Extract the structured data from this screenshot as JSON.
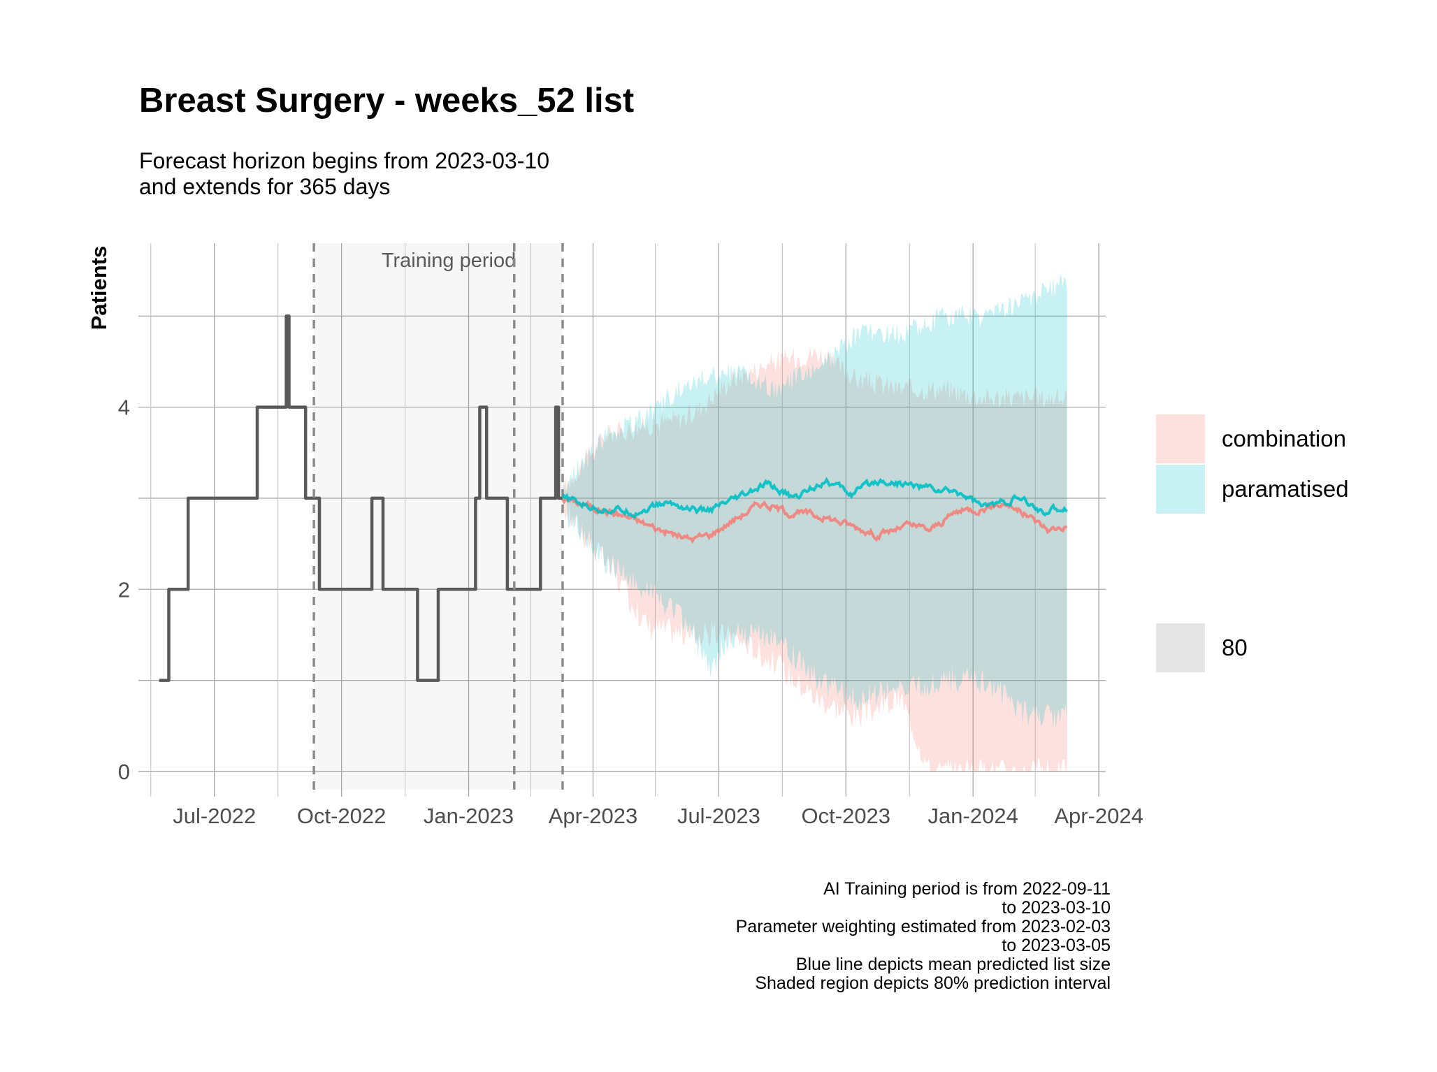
{
  "chart_data": {
    "type": "line",
    "title": "Breast Surgery - weeks_52 list",
    "subtitle": [
      "Forecast horizon begins from 2023-03-10",
      "and extends for 365 days"
    ],
    "xlabel": "",
    "ylabel": "Patients",
    "x_ticks": [
      "Jul-2022",
      "Oct-2022",
      "Jan-2023",
      "Apr-2023",
      "Jul-2023",
      "Oct-2023",
      "Jan-2024",
      "Apr-2024"
    ],
    "y_ticks": [
      0,
      2,
      4
    ],
    "ylim": [
      -0.2,
      5.8
    ],
    "xlim": [
      "2022-05-07",
      "2024-04-06"
    ],
    "grid": true,
    "legend_position": "right",
    "training_period": {
      "start": "2022-09-11",
      "end": "2023-03-10",
      "label": "Training period"
    },
    "reference_lines": [
      "2022-09-11",
      "2023-02-03",
      "2023-03-10"
    ],
    "observed": {
      "color": "#595959",
      "points": [
        [
          "2022-05-22",
          1
        ],
        [
          "2022-05-29",
          2
        ],
        [
          "2022-06-12",
          3
        ],
        [
          "2022-08-01",
          4
        ],
        [
          "2022-08-22",
          5
        ],
        [
          "2022-08-24",
          4
        ],
        [
          "2022-08-27",
          4
        ],
        [
          "2022-09-05",
          3
        ],
        [
          "2022-09-15",
          2
        ],
        [
          "2022-10-23",
          3
        ],
        [
          "2022-10-31",
          2
        ],
        [
          "2022-11-25",
          1
        ],
        [
          "2022-12-10",
          2
        ],
        [
          "2023-01-06",
          3
        ],
        [
          "2023-01-09",
          4
        ],
        [
          "2023-01-14",
          3
        ],
        [
          "2023-01-29",
          2
        ],
        [
          "2023-02-22",
          3
        ],
        [
          "2023-03-05",
          4
        ],
        [
          "2023-03-07",
          3
        ],
        [
          "2023-03-10",
          3
        ]
      ]
    },
    "series": [
      {
        "name": "combination",
        "color": "#f8766d",
        "fill": "#f8766d",
        "points": [
          [
            "2023-03-10",
            3.0
          ],
          [
            "2023-04-01",
            2.9
          ],
          [
            "2023-04-25",
            2.8
          ],
          [
            "2023-05-20",
            2.65
          ],
          [
            "2023-06-10",
            2.55
          ],
          [
            "2023-06-25",
            2.6
          ],
          [
            "2023-07-10",
            2.75
          ],
          [
            "2023-08-01",
            2.95
          ],
          [
            "2023-08-20",
            2.85
          ],
          [
            "2023-09-15",
            2.8
          ],
          [
            "2023-10-05",
            2.7
          ],
          [
            "2023-10-25",
            2.6
          ],
          [
            "2023-11-15",
            2.7
          ],
          [
            "2023-12-01",
            2.65
          ],
          [
            "2023-12-20",
            2.85
          ],
          [
            "2024-01-10",
            2.9
          ],
          [
            "2024-01-25",
            2.95
          ],
          [
            "2024-02-10",
            2.8
          ],
          [
            "2024-02-25",
            2.65
          ],
          [
            "2024-03-09",
            2.7
          ]
        ],
        "lower": [
          [
            "2023-03-10",
            2.9
          ],
          [
            "2023-04-10",
            2.3
          ],
          [
            "2023-05-10",
            1.6
          ],
          [
            "2023-06-10",
            1.5
          ],
          [
            "2023-07-10",
            1.5
          ],
          [
            "2023-08-10",
            1.2
          ],
          [
            "2023-09-10",
            0.8
          ],
          [
            "2023-10-10",
            0.6
          ],
          [
            "2023-11-10",
            0.8
          ],
          [
            "2023-12-01",
            0.0
          ],
          [
            "2024-01-10",
            0.0
          ],
          [
            "2024-03-09",
            0.0
          ]
        ],
        "upper": [
          [
            "2023-03-10",
            3.1
          ],
          [
            "2023-04-10",
            3.7
          ],
          [
            "2023-05-10",
            3.8
          ],
          [
            "2023-06-10",
            3.9
          ],
          [
            "2023-07-10",
            4.3
          ],
          [
            "2023-08-10",
            4.5
          ],
          [
            "2023-09-10",
            4.6
          ],
          [
            "2023-10-10",
            4.3
          ],
          [
            "2023-11-10",
            4.2
          ],
          [
            "2023-12-10",
            4.2
          ],
          [
            "2024-01-10",
            4.1
          ],
          [
            "2024-02-10",
            4.1
          ],
          [
            "2024-03-09",
            4.1
          ]
        ]
      },
      {
        "name": "paramatised",
        "color": "#00bfc4",
        "fill": "#00bfc4",
        "points": [
          [
            "2023-03-10",
            3.0
          ],
          [
            "2023-04-01",
            2.9
          ],
          [
            "2023-05-01",
            2.85
          ],
          [
            "2023-05-25",
            2.95
          ],
          [
            "2023-06-20",
            2.85
          ],
          [
            "2023-07-10",
            2.95
          ],
          [
            "2023-08-05",
            3.15
          ],
          [
            "2023-08-25",
            3.0
          ],
          [
            "2023-09-15",
            3.2
          ],
          [
            "2023-10-05",
            3.05
          ],
          [
            "2023-10-25",
            3.2
          ],
          [
            "2023-11-15",
            3.15
          ],
          [
            "2023-12-05",
            3.1
          ],
          [
            "2023-12-25",
            3.05
          ],
          [
            "2024-01-10",
            2.9
          ],
          [
            "2024-02-01",
            3.0
          ],
          [
            "2024-02-20",
            2.85
          ],
          [
            "2024-03-09",
            2.9
          ]
        ],
        "lower": [
          [
            "2023-03-10",
            2.9
          ],
          [
            "2023-04-10",
            2.3
          ],
          [
            "2023-05-10",
            2.0
          ],
          [
            "2023-06-10",
            1.6
          ],
          [
            "2023-06-25",
            1.1
          ],
          [
            "2023-07-10",
            1.5
          ],
          [
            "2023-08-10",
            1.5
          ],
          [
            "2023-09-10",
            1.0
          ],
          [
            "2023-10-10",
            0.8
          ],
          [
            "2023-11-10",
            0.9
          ],
          [
            "2023-12-10",
            1.0
          ],
          [
            "2024-01-10",
            1.0
          ],
          [
            "2024-02-10",
            0.6
          ],
          [
            "2024-03-09",
            0.6
          ]
        ],
        "upper": [
          [
            "2023-03-10",
            3.1
          ],
          [
            "2023-04-10",
            3.7
          ],
          [
            "2023-05-10",
            3.9
          ],
          [
            "2023-06-10",
            4.3
          ],
          [
            "2023-07-10",
            4.4
          ],
          [
            "2023-08-10",
            4.2
          ],
          [
            "2023-09-10",
            4.4
          ],
          [
            "2023-10-10",
            4.8
          ],
          [
            "2023-11-10",
            4.8
          ],
          [
            "2023-12-10",
            5.0
          ],
          [
            "2024-01-10",
            5.0
          ],
          [
            "2024-02-10",
            5.2
          ],
          [
            "2024-03-09",
            5.4
          ]
        ]
      }
    ],
    "legend": {
      "entries": [
        "combination",
        "paramatised"
      ],
      "interval_label": "80"
    },
    "captions": [
      "AI Training period is from 2022-09-11",
      "to 2023-03-10",
      "Parameter weighting estimated from 2023-02-03",
      "to 2023-03-05",
      "Blue line depicts mean predicted list size",
      "Shaded region depicts 80% prediction interval"
    ]
  }
}
